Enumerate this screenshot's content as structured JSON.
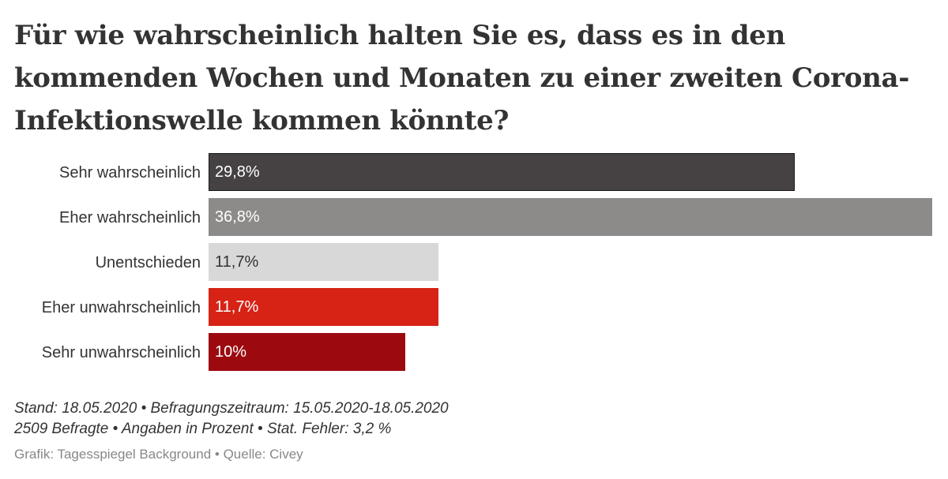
{
  "title": "Für wie wahrscheinlich halten Sie es, dass es in den kommenden Wochen und Monaten zu einer zweiten Corona-Infektionswelle kommen könnte?",
  "chart_data": {
    "type": "bar",
    "orientation": "horizontal",
    "title": "Für wie wahrscheinlich halten Sie es, dass es in den kommenden Wochen und Monaten zu einer zweiten Corona-Infektionswelle kommen könnte?",
    "xlabel": "",
    "ylabel": "",
    "grid": false,
    "xlim": [
      0,
      36.8
    ],
    "categories": [
      "Sehr wahrscheinlich",
      "Eher wahrscheinlich",
      "Unentschieden",
      "Eher unwahrscheinlich",
      "Sehr unwahrscheinlich"
    ],
    "values": [
      29.8,
      36.8,
      11.7,
      11.7,
      10
    ],
    "data_labels": [
      "29,8%",
      "36,8%",
      "11,7%",
      "11,7%",
      "10%"
    ],
    "colors": [
      "#464244",
      "#8c8b8a",
      "#d8d8d8",
      "#d62316",
      "#9c0a10"
    ],
    "label_colors": [
      "#ffffff",
      "#ffffff",
      "#333333",
      "#ffffff",
      "#ffffff"
    ]
  },
  "footer": {
    "line1": "Stand: 18.05.2020 • Befragungszeitraum: 15.05.2020-18.05.2020",
    "line2": "2509 Befragte • Angaben in Prozent • Stat. Fehler: 3,2 %",
    "source": "Grafik: Tagesspiegel Background • Quelle: Civey"
  }
}
